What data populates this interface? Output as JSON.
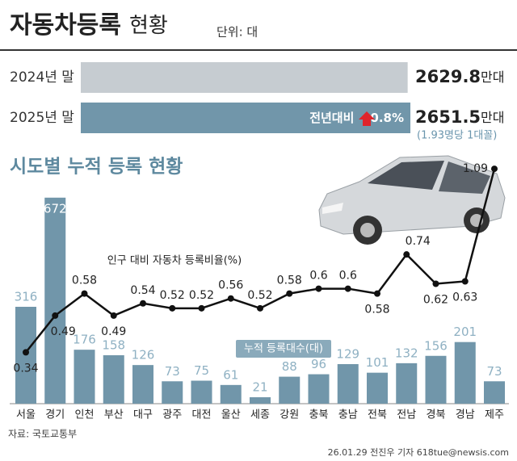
{
  "chart_data": [
    {
      "type": "hbar",
      "title": "자동차등록",
      "title_suffix": "현황",
      "unit": "단위: 대",
      "categories": [
        "2024년 말",
        "2025년 말"
      ],
      "values": [
        2629.8,
        2651.5
      ],
      "value_unit": "만대",
      "colors": [
        "#c6ccd1",
        "#7196aa"
      ],
      "annotation": "전년대비",
      "change": "0.8%",
      "note": "(1.93명당 1대꼴)"
    },
    {
      "type": "bar_line",
      "title": "시도별 누적 등록 현황",
      "categories": [
        "서울",
        "경기",
        "인천",
        "부산",
        "대구",
        "광주",
        "대전",
        "울산",
        "세종",
        "강원",
        "충북",
        "충남",
        "전북",
        "전남",
        "경북",
        "경남",
        "제주"
      ],
      "series": [
        {
          "name": "누적 등록대수(대)",
          "color": "#7196aa",
          "values": [
            316,
            672,
            176,
            158,
            126,
            73,
            75,
            61,
            21,
            88,
            96,
            129,
            101,
            132,
            156,
            201,
            73
          ]
        },
        {
          "name": "인구 대비 자동차 등록비율(%)",
          "color": "#111111",
          "axis": "y2",
          "values": [
            0.34,
            0.49,
            0.58,
            0.49,
            0.54,
            0.52,
            0.52,
            0.56,
            0.52,
            0.58,
            0.6,
            0.6,
            0.58,
            0.74,
            0.62,
            0.63,
            1.09
          ]
        }
      ],
      "ylim": [
        0,
        790
      ],
      "y2lim": [
        0.13,
        1.12
      ],
      "source": "자료: 국토교통부",
      "credit": "26.01.29 전진우 기자 618tue@newsis.com"
    }
  ]
}
